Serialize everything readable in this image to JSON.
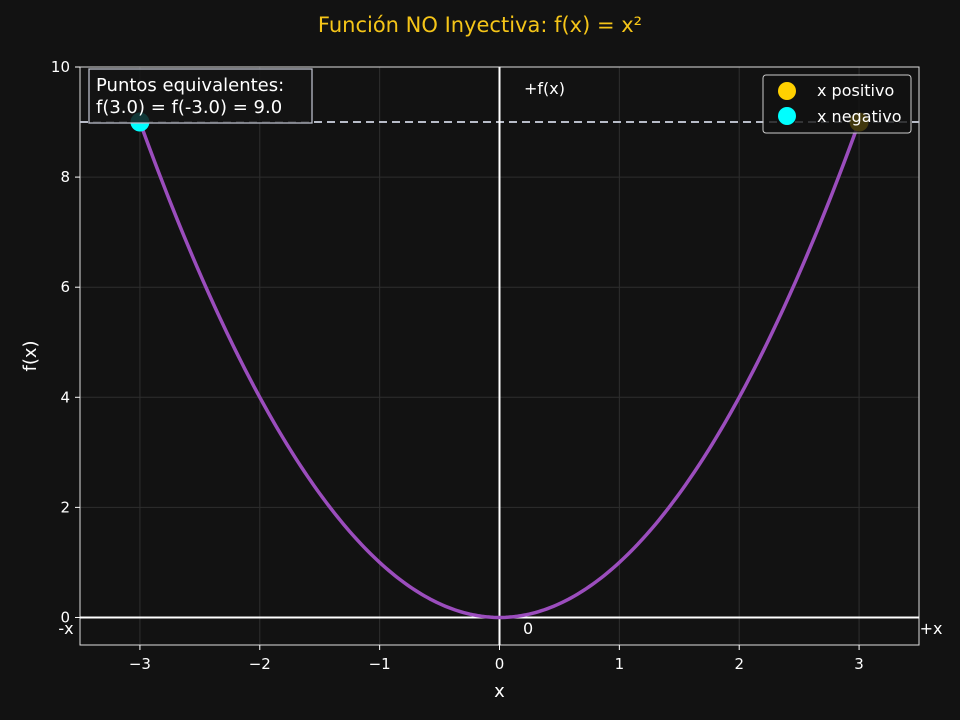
{
  "chart_data": {
    "type": "line",
    "title": "Función NO Inyectiva: f(x) = x²",
    "xlabel": "x",
    "ylabel": "f(x)",
    "xlim": [
      -3.5,
      3.5
    ],
    "ylim": [
      -0.5,
      10
    ],
    "xticks": [
      -3,
      -2,
      -1,
      0,
      1,
      2,
      3
    ],
    "xtick_labels": [
      "−3",
      "−2",
      "−1",
      "0",
      "1",
      "2",
      "3"
    ],
    "yticks": [
      0,
      2,
      4,
      6,
      8,
      10
    ],
    "ytick_labels": [
      "0",
      "2",
      "4",
      "6",
      "8",
      "10"
    ],
    "grid": true,
    "series": [
      {
        "function": "x^2",
        "domain": [
          -3,
          3
        ],
        "color": "#9b4dbd"
      }
    ],
    "points": [
      {
        "name": "x positivo",
        "x": 3,
        "y": 9,
        "color": "#ffd000"
      },
      {
        "name": "x negativo",
        "x": -3,
        "y": 9,
        "color": "#00ffff"
      }
    ],
    "reference_line": {
      "y": 9,
      "style": "dashed",
      "color": "#b8bcc8"
    },
    "axis_labels": {
      "neg_x": "-x",
      "pos_x": "+x",
      "pos_fx": "+f(x)",
      "origin": "0"
    },
    "annotation": {
      "lines": [
        "Puntos equivalentes:",
        "f(3.0) = f(-3.0) = 9.0"
      ],
      "position": "top-left"
    },
    "legend": {
      "position": "top-right",
      "entries": [
        {
          "label": "x positivo",
          "color": "#ffd000"
        },
        {
          "label": "x negativo",
          "color": "#00ffff"
        }
      ]
    },
    "colors": {
      "background": "#121212",
      "title": "#f5c518",
      "text": "#ffffff",
      "grid": "#2e2e2e",
      "curve": "#9b4dbd"
    }
  }
}
